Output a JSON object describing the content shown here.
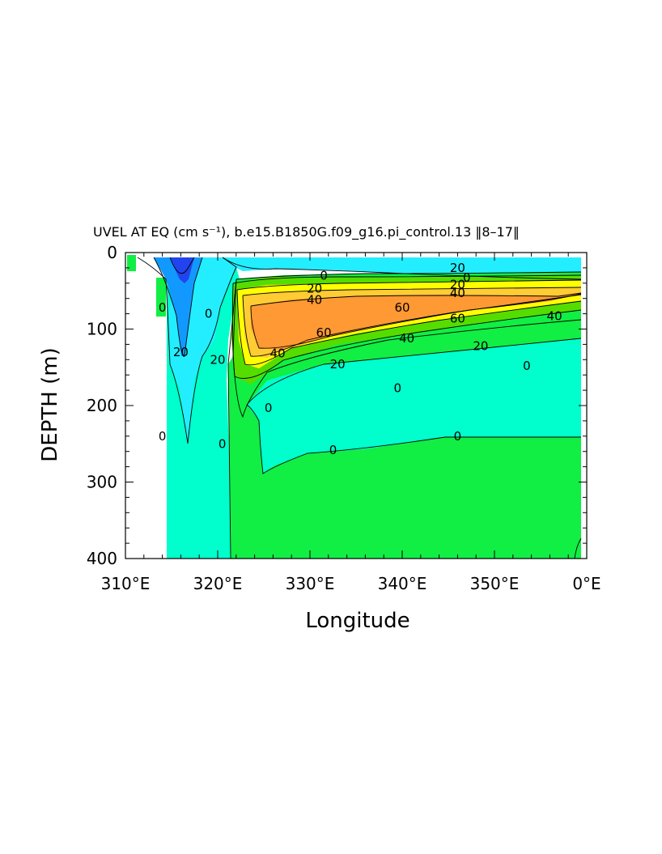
{
  "chart_data": {
    "type": "heatmap",
    "title": "UVEL AT EQ (cm s⁻¹), b.e15.B1850G.f09_g16.pi_control.13 ‖8–17‖",
    "xlabel": "Longitude",
    "ylabel": "DEPTH (m)",
    "xlim": [
      310,
      360
    ],
    "ylim": [
      400,
      0
    ],
    "x_ticks": [
      "310°E",
      "320°E",
      "330°E",
      "340°E",
      "350°E",
      "0°E"
    ],
    "y_ticks": [
      "0",
      "100",
      "200",
      "300",
      "400"
    ],
    "contour_levels": [
      -40,
      -20,
      0,
      20,
      40,
      60
    ],
    "colors": {
      "below_-40": "#2244ee",
      "-40_to_-20": "#1199ff",
      "-20_to_0": "#22eeff",
      "0_to_20": "#00ffcc",
      "20_to_40": "#11ee44",
      "40_to_60": "#55dd00",
      "60_to_80": "#ffff00",
      "80_to_100": "#ffcc33",
      "above_100": "#ff9933"
    },
    "contour_labels": [
      {
        "text": "0",
        "lon": 331.5,
        "depth": 30
      },
      {
        "text": "20",
        "lon": 346,
        "depth": 20
      },
      {
        "text": "0",
        "lon": 347,
        "depth": 33
      },
      {
        "text": "20",
        "lon": 346,
        "depth": 42
      },
      {
        "text": "40",
        "lon": 346,
        "depth": 53
      },
      {
        "text": "20",
        "lon": 330.5,
        "depth": 47
      },
      {
        "text": "40",
        "lon": 330.5,
        "depth": 62
      },
      {
        "text": "60",
        "lon": 340,
        "depth": 72
      },
      {
        "text": "60",
        "lon": 346,
        "depth": 86
      },
      {
        "text": "60",
        "lon": 331.5,
        "depth": 105
      },
      {
        "text": "40",
        "lon": 356.5,
        "depth": 83
      },
      {
        "text": "40",
        "lon": 340.5,
        "depth": 112
      },
      {
        "text": "40",
        "lon": 326.5,
        "depth": 132
      },
      {
        "text": "20",
        "lon": 348.5,
        "depth": 122
      },
      {
        "text": "20",
        "lon": 333,
        "depth": 146
      },
      {
        "text": "0",
        "lon": 353.5,
        "depth": 148
      },
      {
        "text": "0",
        "lon": 339.5,
        "depth": 177
      },
      {
        "text": "0",
        "lon": 325.5,
        "depth": 203
      },
      {
        "text": "0",
        "lon": 346,
        "depth": 240
      },
      {
        "text": "0",
        "lon": 332.5,
        "depth": 258
      },
      {
        "text": "0",
        "lon": 314,
        "depth": 72
      },
      {
        "text": "20",
        "lon": 316,
        "depth": 130
      },
      {
        "text": "0",
        "lon": 319,
        "depth": 80
      },
      {
        "text": "20",
        "lon": 320,
        "depth": 140
      },
      {
        "text": "0",
        "lon": 314,
        "depth": 240
      },
      {
        "text": "0",
        "lon": 320.5,
        "depth": 250
      }
    ]
  }
}
